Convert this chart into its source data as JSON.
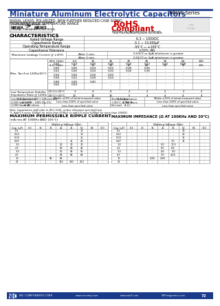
{
  "title": "Miniature Aluminum Electrolytic Capacitors",
  "series": "NRWS Series",
  "subtitle_line1": "RADIAL LEADS, POLARIZED, NEW FURTHER REDUCED CASE SIZING,",
  "subtitle_line2": "FROM NRWA WIDE TEMPERATURE RANGE",
  "rohs_line1": "RoHS",
  "rohs_line2": "Compliant",
  "rohs_sub": "Includes all homogeneous materials",
  "rohs_sub2": "*See Find Number System for Details",
  "ext_temp_label": "EXTENDED TEMPERATURE",
  "nrwa_label": "NRWA",
  "nrws_label": "NRWS",
  "nrwa_sub": "ORIGINAL STANDARD",
  "nrws_sub": "IMPROVED MODEL",
  "char_title": "CHARACTERISTICS",
  "char_rows": [
    [
      "Rated Voltage Range",
      "6.3 ~ 100VDC"
    ],
    [
      "Capacitance Range",
      "0.1 ~ 15,000μF"
    ],
    [
      "Operating Temperature Range",
      "-55°C ~ +105°C"
    ],
    [
      "Capacitance Tolerance",
      "±20% (M)"
    ]
  ],
  "leakage_label": "Maximum Leakage Current @ ±20%:",
  "leakage_after1min": "After 1 min.",
  "leakage_val1": "0.03CV or 4μA whichever is greater",
  "leakage_after2min": "After 2 min.",
  "leakage_val2": "0.01CV or 3μA whichever is greater",
  "tan_header_wv": "W.V. (Vdc)",
  "tan_header_sv": "S.V. (Vdc)",
  "tan_cap_label": "Max. Tan δ at 120Hz/20°C",
  "tan_wv_vals": [
    "6.3",
    "10",
    "16",
    "25",
    "35",
    "50",
    "63",
    "100"
  ],
  "tan_sv_vals": [
    "8",
    "13",
    "20",
    "32",
    "44",
    "63",
    "79",
    "125"
  ],
  "tan_rows": [
    [
      "C ≤ 1,000μF",
      "0.26",
      "0.24",
      "0.20",
      "0.16",
      "0.14",
      "0.12",
      "0.10",
      "0.08"
    ],
    [
      "C ≤ 2,200μF",
      "0.30",
      "0.26",
      "0.24",
      "0.22",
      "0.18",
      "0.16",
      "-",
      "-"
    ],
    [
      "C ≤ 3,300μF",
      "0.32",
      "0.26",
      "0.24",
      "0.20",
      "0.18",
      "0.16",
      "-",
      "-"
    ],
    [
      "C ≤ 4,700μF",
      "0.34",
      "0.26",
      "0.24",
      "0.20",
      "-",
      "-",
      "-",
      "-"
    ],
    [
      "C ≤ 6,800μF",
      "0.36",
      "0.32",
      "0.28",
      "0.24",
      "-",
      "-",
      "-",
      "-"
    ],
    [
      "C ≤ 10,000μF",
      "0.48",
      "0.44",
      "0.40",
      "-",
      "-",
      "-",
      "-",
      "-"
    ],
    [
      "C ≤ 15,000μF",
      "0.56",
      "0.50",
      "-",
      "-",
      "-",
      "-",
      "-",
      "-"
    ]
  ],
  "low_temp_label": "Low Temperature Stability\nImpedance Ratio @ 120Hz",
  "low_temp_rows": [
    [
      "-25°C/+20°C",
      "3",
      "4",
      "8",
      "2",
      "2",
      "2",
      "2",
      "2"
    ],
    [
      "-40°C/+20°C",
      "12",
      "10",
      "16",
      "5",
      "4",
      "4",
      "4",
      "4"
    ]
  ],
  "load_life_label": "Load Life Test at +105°C & Rated W.V.\n2,000 Hours: MV ~ 100V Qty 5%;\n1,000 Hours: All others",
  "load_life_rows": [
    [
      "Δ Capacitance",
      "Within ±20% of initial measured value"
    ],
    [
      "Δ Tan δ",
      "Less than 200% of specified value"
    ],
    [
      "Δ LC",
      "Less than specified value"
    ]
  ],
  "shelf_life_label": "Shelf Life Test\n+105°C, 1,000 Hours\nNo Load",
  "shelf_life_rows": [
    [
      "Δ Capacitance",
      "Within ±15% of initial measured value"
    ],
    [
      "Δ Tan δ",
      "Less than 200% of specified value"
    ],
    [
      "Δ LC",
      "Less than specified value"
    ]
  ],
  "note1": "Note: Capacitance shall refer to JIS-C-5141, unless otherwise specified here.",
  "note2": "*1. Add 0.5 every 1000μF for more than 4700μF or add 0.5 every 5000μF for more than 100VDC",
  "ripple_title": "MAXIMUM PERMISSIBLE RIPPLE CURRENT",
  "ripple_subtitle": "(mA rms AT 100KHz AND 105°C)",
  "impedance_title": "MAXIMUM IMPEDANCE (Ω AT 100KHz AND 20°C)",
  "cap_label": "Cap. (μF)",
  "wv_header": "Working Voltage (Vdc)",
  "ripple_wv": [
    "6.3",
    "10",
    "16",
    "25",
    "35",
    "50",
    "63",
    "100"
  ],
  "ripple_caps": [
    "0.1",
    "0.22",
    "0.33",
    "0.47",
    "1.0",
    "2.2",
    "3.3",
    "4.7",
    "10",
    "22"
  ],
  "ripple_data": [
    [
      "-",
      "-",
      "-",
      "-",
      "-",
      "10",
      "-",
      "-"
    ],
    [
      "-",
      "-",
      "-",
      "-",
      "-",
      "13",
      "-",
      "-"
    ],
    [
      "-",
      "-",
      "-",
      "-",
      "-",
      "15",
      "-",
      "-"
    ],
    [
      "-",
      "-",
      "-",
      "-",
      "15",
      "20",
      "-",
      "-"
    ],
    [
      "-",
      "-",
      "-",
      "20",
      "30",
      "30",
      "-",
      "-"
    ],
    [
      "-",
      "-",
      "-",
      "40",
      "40",
      "42",
      "-",
      "-"
    ],
    [
      "-",
      "-",
      "-",
      "50",
      "54",
      "56",
      "-",
      "-"
    ],
    [
      "-",
      "-",
      "-",
      "64",
      "64",
      "64",
      "-",
      "-"
    ],
    [
      "-",
      "-",
      "90",
      "86",
      "-",
      "-",
      "-",
      "-"
    ],
    [
      "-",
      "-",
      "-",
      "115",
      "140",
      "200",
      "-",
      "-"
    ]
  ],
  "impedance_caps": [
    "0.1",
    "0.22",
    "0.33",
    "0.47",
    "1.0",
    "2.2",
    "3.3",
    "4.7",
    "10",
    "22"
  ],
  "impedance_data": [
    [
      "-",
      "-",
      "-",
      "-",
      "-",
      "30",
      "-",
      "-"
    ],
    [
      "-",
      "-",
      "-",
      "-",
      "-",
      "20",
      "-",
      "-"
    ],
    [
      "-",
      "-",
      "-",
      "-",
      "-",
      "15",
      "-",
      "-"
    ],
    [
      "-",
      "-",
      "-",
      "-",
      "7.0",
      "11",
      "-",
      "-"
    ],
    [
      "-",
      "-",
      "-",
      "5.0",
      "10.5",
      "-",
      "-",
      "-"
    ],
    [
      "-",
      "-",
      "-",
      "6.5",
      "8.4",
      "-",
      "-",
      "-"
    ],
    [
      "-",
      "-",
      "-",
      "4.0",
      "5.0",
      "-",
      "-",
      "-"
    ],
    [
      "-",
      "-",
      "-",
      "3.0",
      "4.25",
      "-",
      "-",
      "-"
    ],
    [
      "-",
      "-",
      "2.80",
      "2.80",
      "-",
      "-",
      "-",
      "-"
    ],
    [
      "-",
      "-",
      "-",
      "-",
      "-",
      "-",
      "-",
      "-"
    ]
  ],
  "bg_color": "#ffffff",
  "header_blue": "#1a3a8a",
  "line_color": "#888888",
  "text_color": "#000000",
  "logo_text": "NIC",
  "company_text": "NIC COMPONENTS CORP.",
  "company_url": "www.niccomp.com",
  "swe_url": "www.swe3.com",
  "sm_url": "SM7magnetics.com",
  "page_num": "72"
}
